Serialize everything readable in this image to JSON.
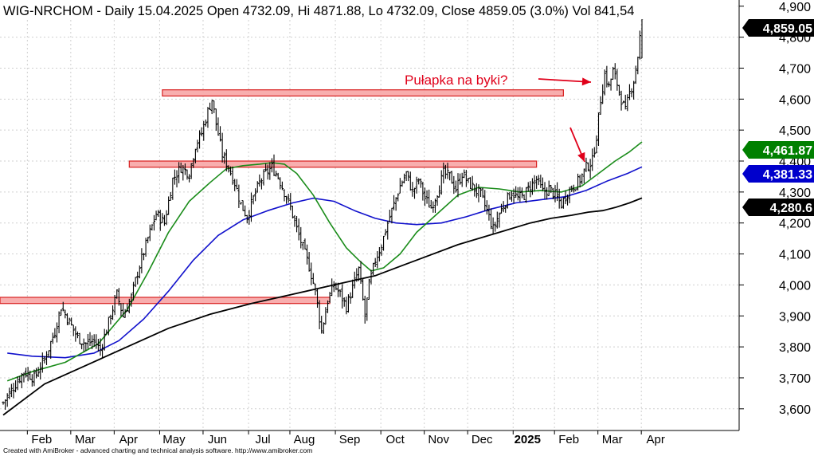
{
  "chart_data": {
    "type": "ohlc",
    "title": "WIG-NRCHOM - Daily 15.04.2025 Open 4732.09, Hi 4871.88, Lo 4732.09, Close 4859.05 (3.0%) Vol 841,54",
    "footer": "Created with AmiBroker - advanced charting and technical analysis software. http://www.amibroker.com",
    "ylim": [
      3530,
      4920
    ],
    "y_ticks": [
      3600,
      3700,
      3800,
      3900,
      4000,
      4100,
      4200,
      4300,
      4400,
      4500,
      4600,
      4700,
      4800,
      4900
    ],
    "y_tick_labels": [
      "3,600",
      "3,700",
      "3,800",
      "3,900",
      "4,000",
      "4,100",
      "4,200",
      "4,300",
      "4,400",
      "4,500",
      "4,600",
      "4,700",
      "4,800",
      "4,900"
    ],
    "x_ticks": [
      {
        "label": "Feb",
        "bold": false
      },
      {
        "label": "Mar",
        "bold": false
      },
      {
        "label": "Apr",
        "bold": false
      },
      {
        "label": "May",
        "bold": false
      },
      {
        "label": "Jun",
        "bold": false
      },
      {
        "label": "Jul",
        "bold": false
      },
      {
        "label": "Aug",
        "bold": false
      },
      {
        "label": "Sep",
        "bold": false
      },
      {
        "label": "Oct",
        "bold": false
      },
      {
        "label": "Nov",
        "bold": false
      },
      {
        "label": "Dec",
        "bold": false
      },
      {
        "label": "2025",
        "bold": true
      },
      {
        "label": "Feb",
        "bold": false
      },
      {
        "label": "Mar",
        "bold": false
      },
      {
        "label": "Apr",
        "bold": false
      }
    ],
    "price_path": [
      [
        0,
        3620
      ],
      [
        5,
        3670
      ],
      [
        10,
        3720
      ],
      [
        15,
        3700
      ],
      [
        20,
        3760
      ],
      [
        25,
        3850
      ],
      [
        28,
        3930
      ],
      [
        32,
        3880
      ],
      [
        36,
        3830
      ],
      [
        40,
        3810
      ],
      [
        44,
        3820
      ],
      [
        47,
        3790
      ],
      [
        51,
        3880
      ],
      [
        55,
        3970
      ],
      [
        58,
        3900
      ],
      [
        62,
        3960
      ],
      [
        65,
        4040
      ],
      [
        70,
        4150
      ],
      [
        74,
        4230
      ],
      [
        78,
        4200
      ],
      [
        82,
        4340
      ],
      [
        86,
        4380
      ],
      [
        90,
        4360
      ],
      [
        93,
        4450
      ],
      [
        96,
        4490
      ],
      [
        99,
        4560
      ],
      [
        101,
        4600
      ],
      [
        103,
        4520
      ],
      [
        106,
        4420
      ],
      [
        109,
        4380
      ],
      [
        112,
        4330
      ],
      [
        115,
        4260
      ],
      [
        118,
        4220
      ],
      [
        121,
        4280
      ],
      [
        124,
        4330
      ],
      [
        127,
        4360
      ],
      [
        130,
        4380
      ],
      [
        133,
        4350
      ],
      [
        136,
        4300
      ],
      [
        139,
        4250
      ],
      [
        142,
        4180
      ],
      [
        145,
        4120
      ],
      [
        148,
        4060
      ],
      [
        151,
        3980
      ],
      [
        154,
        3850
      ],
      [
        157,
        3950
      ],
      [
        160,
        4000
      ],
      [
        163,
        3970
      ],
      [
        166,
        3930
      ],
      [
        169,
        3990
      ],
      [
        172,
        4050
      ],
      [
        175,
        3900
      ],
      [
        177,
        4000
      ],
      [
        180,
        4080
      ],
      [
        183,
        4130
      ],
      [
        186,
        4200
      ],
      [
        189,
        4260
      ],
      [
        192,
        4320
      ],
      [
        195,
        4360
      ],
      [
        198,
        4300
      ],
      [
        201,
        4340
      ],
      [
        204,
        4280
      ],
      [
        207,
        4250
      ],
      [
        210,
        4300
      ],
      [
        213,
        4360
      ],
      [
        216,
        4350
      ],
      [
        219,
        4310
      ],
      [
        222,
        4360
      ],
      [
        225,
        4330
      ],
      [
        228,
        4310
      ],
      [
        231,
        4290
      ],
      [
        234,
        4240
      ],
      [
        237,
        4180
      ],
      [
        240,
        4230
      ],
      [
        243,
        4270
      ],
      [
        246,
        4300
      ],
      [
        249,
        4280
      ],
      [
        252,
        4290
      ],
      [
        255,
        4320
      ],
      [
        258,
        4340
      ],
      [
        261,
        4300
      ],
      [
        264,
        4310
      ],
      [
        267,
        4290
      ],
      [
        270,
        4260
      ],
      [
        273,
        4300
      ],
      [
        276,
        4320
      ],
      [
        279,
        4340
      ],
      [
        282,
        4380
      ],
      [
        285,
        4400
      ],
      [
        287,
        4480
      ],
      [
        289,
        4600
      ],
      [
        291,
        4680
      ],
      [
        293,
        4640
      ],
      [
        295,
        4690
      ],
      [
        297,
        4650
      ],
      [
        299,
        4600
      ],
      [
        301,
        4560
      ],
      [
        303,
        4620
      ],
      [
        305,
        4660
      ],
      [
        307,
        4740
      ],
      [
        309,
        4859.05
      ]
    ],
    "ma_green": [
      [
        2,
        3690
      ],
      [
        14,
        3720
      ],
      [
        30,
        3750
      ],
      [
        46,
        3810
      ],
      [
        60,
        3920
      ],
      [
        70,
        4040
      ],
      [
        80,
        4170
      ],
      [
        90,
        4270
      ],
      [
        100,
        4330
      ],
      [
        108,
        4375
      ],
      [
        116,
        4385
      ],
      [
        124,
        4390
      ],
      [
        130,
        4395
      ],
      [
        136,
        4390
      ],
      [
        142,
        4360
      ],
      [
        150,
        4290
      ],
      [
        158,
        4200
      ],
      [
        166,
        4120
      ],
      [
        172,
        4080
      ],
      [
        178,
        4045
      ],
      [
        184,
        4055
      ],
      [
        192,
        4100
      ],
      [
        200,
        4170
      ],
      [
        210,
        4230
      ],
      [
        220,
        4290
      ],
      [
        230,
        4315
      ],
      [
        240,
        4310
      ],
      [
        250,
        4300
      ],
      [
        260,
        4305
      ],
      [
        270,
        4300
      ],
      [
        280,
        4320
      ],
      [
        288,
        4360
      ],
      [
        296,
        4400
      ],
      [
        303,
        4430
      ],
      [
        309,
        4461.87
      ]
    ],
    "ma_blue": [
      [
        2,
        3780
      ],
      [
        14,
        3770
      ],
      [
        30,
        3765
      ],
      [
        44,
        3780
      ],
      [
        56,
        3820
      ],
      [
        68,
        3890
      ],
      [
        80,
        3980
      ],
      [
        92,
        4080
      ],
      [
        104,
        4160
      ],
      [
        116,
        4210
      ],
      [
        128,
        4240
      ],
      [
        140,
        4265
      ],
      [
        150,
        4280
      ],
      [
        160,
        4270
      ],
      [
        170,
        4240
      ],
      [
        180,
        4215
      ],
      [
        190,
        4200
      ],
      [
        200,
        4195
      ],
      [
        212,
        4200
      ],
      [
        224,
        4220
      ],
      [
        236,
        4245
      ],
      [
        248,
        4265
      ],
      [
        260,
        4275
      ],
      [
        272,
        4285
      ],
      [
        282,
        4305
      ],
      [
        292,
        4335
      ],
      [
        302,
        4360
      ],
      [
        309,
        4381.33
      ]
    ],
    "ma_black": [
      [
        0,
        3580
      ],
      [
        20,
        3680
      ],
      [
        40,
        3740
      ],
      [
        60,
        3800
      ],
      [
        80,
        3860
      ],
      [
        100,
        3905
      ],
      [
        120,
        3940
      ],
      [
        140,
        3970
      ],
      [
        160,
        4000
      ],
      [
        180,
        4030
      ],
      [
        200,
        4080
      ],
      [
        220,
        4130
      ],
      [
        240,
        4170
      ],
      [
        255,
        4200
      ],
      [
        265,
        4215
      ],
      [
        275,
        4225
      ],
      [
        283,
        4235
      ],
      [
        290,
        4240
      ],
      [
        296,
        4250
      ],
      [
        303,
        4265
      ],
      [
        309,
        4280.6
      ]
    ],
    "zones": [
      {
        "from_day": 0,
        "to_day": 158,
        "low": 3940,
        "high": 3960
      },
      {
        "from_day": 61,
        "to_day": 258,
        "low": 4380,
        "high": 4400
      },
      {
        "from_day": 77,
        "to_day": 271,
        "low": 4610,
        "high": 4630
      }
    ],
    "last_value_tags": [
      {
        "label": "4,859.05",
        "value": 4859.05,
        "bg": "#000000",
        "fg": "#ffffff"
      },
      {
        "label": "4,461.87",
        "value": 4461.87,
        "bg": "#008000",
        "fg": "#ffffff"
      },
      {
        "label": "4,381.33",
        "value": 4381.33,
        "bg": "#0000cc",
        "fg": "#ffffff"
      },
      {
        "label": "4,280.6",
        "value": 4280.6,
        "bg": "#000000",
        "fg": "#ffffff"
      }
    ],
    "annotation": {
      "text": "Pułapka na byki?",
      "color": "#e0001a"
    },
    "colors": {
      "bars": "#000000",
      "ma_green": "#1a8c1a",
      "ma_blue": "#1010cc",
      "ma_black": "#000000",
      "zone_fill": "#f7a5a5",
      "zone_stroke": "#d82020",
      "arrow": "#e0001a"
    }
  }
}
